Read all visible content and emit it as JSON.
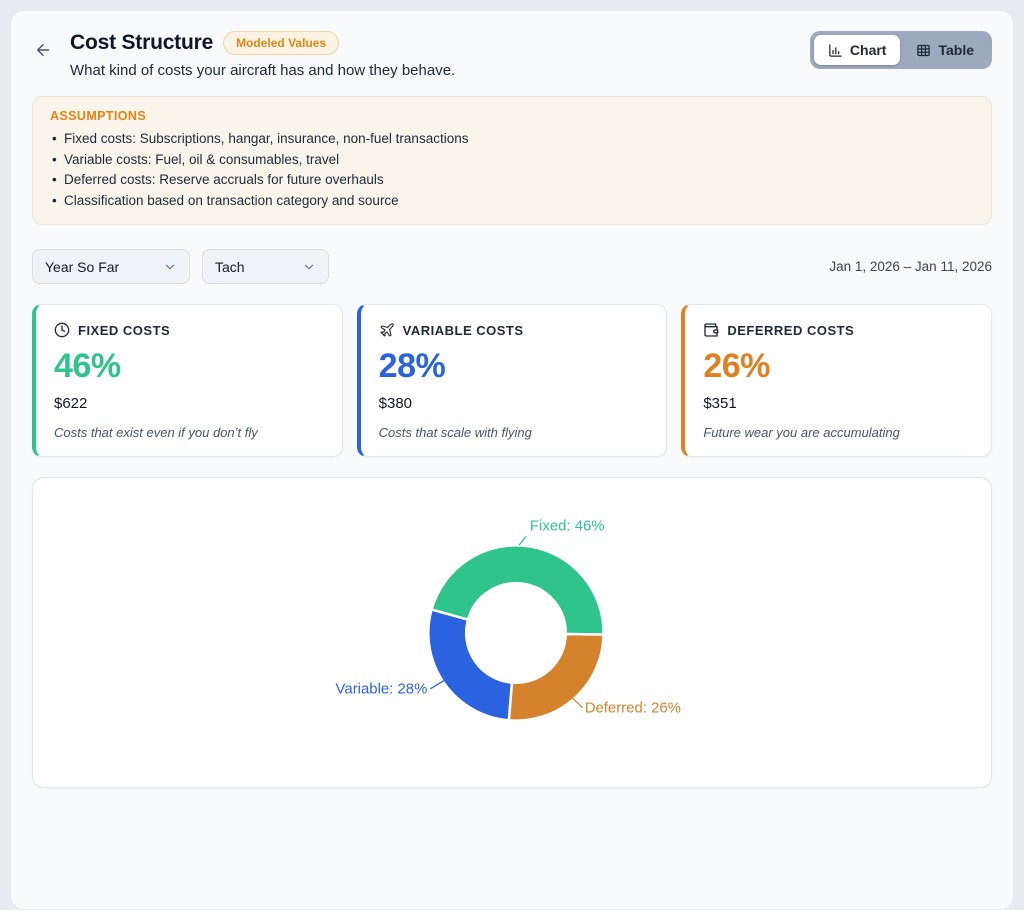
{
  "header": {
    "title": "Cost Structure",
    "badge": "Modeled Values",
    "subtitle": "What kind of costs your aircraft has and how they behave.",
    "view_toggle": {
      "chart": "Chart",
      "table": "Table",
      "active": "Chart"
    }
  },
  "assumptions": {
    "heading": "ASSUMPTIONS",
    "items": [
      "Fixed costs: Subscriptions, hangar, insurance, non-fuel transactions",
      "Variable costs: Fuel, oil & consumables, travel",
      "Deferred costs: Reserve accruals for future overhauls",
      "Classification based on transaction category and source"
    ]
  },
  "filters": {
    "period": "Year So Far",
    "meter": "Tach",
    "date_range": "Jan 1, 2026 – Jan 11, 2026"
  },
  "cards": [
    {
      "icon": "clock-icon",
      "label": "FIXED COSTS",
      "percent": "46%",
      "amount": "$622",
      "description": "Costs that exist even if you don’t fly",
      "accent": "#2ec48c"
    },
    {
      "icon": "plane-icon",
      "label": "VARIABLE COSTS",
      "percent": "28%",
      "amount": "$380",
      "description": "Costs that scale with flying",
      "accent": "#2a62df"
    },
    {
      "icon": "wallet-icon",
      "label": "DEFERRED COSTS",
      "percent": "26%",
      "amount": "$351",
      "description": "Future wear you are accumulating",
      "accent": "#e0801f"
    }
  ],
  "chart_data": {
    "type": "pie",
    "donut": true,
    "categories": [
      "Fixed",
      "Variable",
      "Deferred"
    ],
    "values": [
      46,
      28,
      26
    ],
    "unit": "%",
    "colors": [
      "#2ec48c",
      "#2a62df",
      "#d5822d"
    ],
    "point_labels": [
      "Fixed: 46%",
      "Variable: 28%",
      "Deferred: 26%"
    ],
    "legend": "none",
    "title": ""
  },
  "theme": {
    "accent_green": "#2ec48c",
    "accent_blue": "#2a62df",
    "accent_orange": "#e0801f",
    "badge_text": "#e2861b",
    "assumptions_heading": "#e8820e",
    "panel_bg": "#f8fafc",
    "toggle_bg": "#9da9be"
  }
}
